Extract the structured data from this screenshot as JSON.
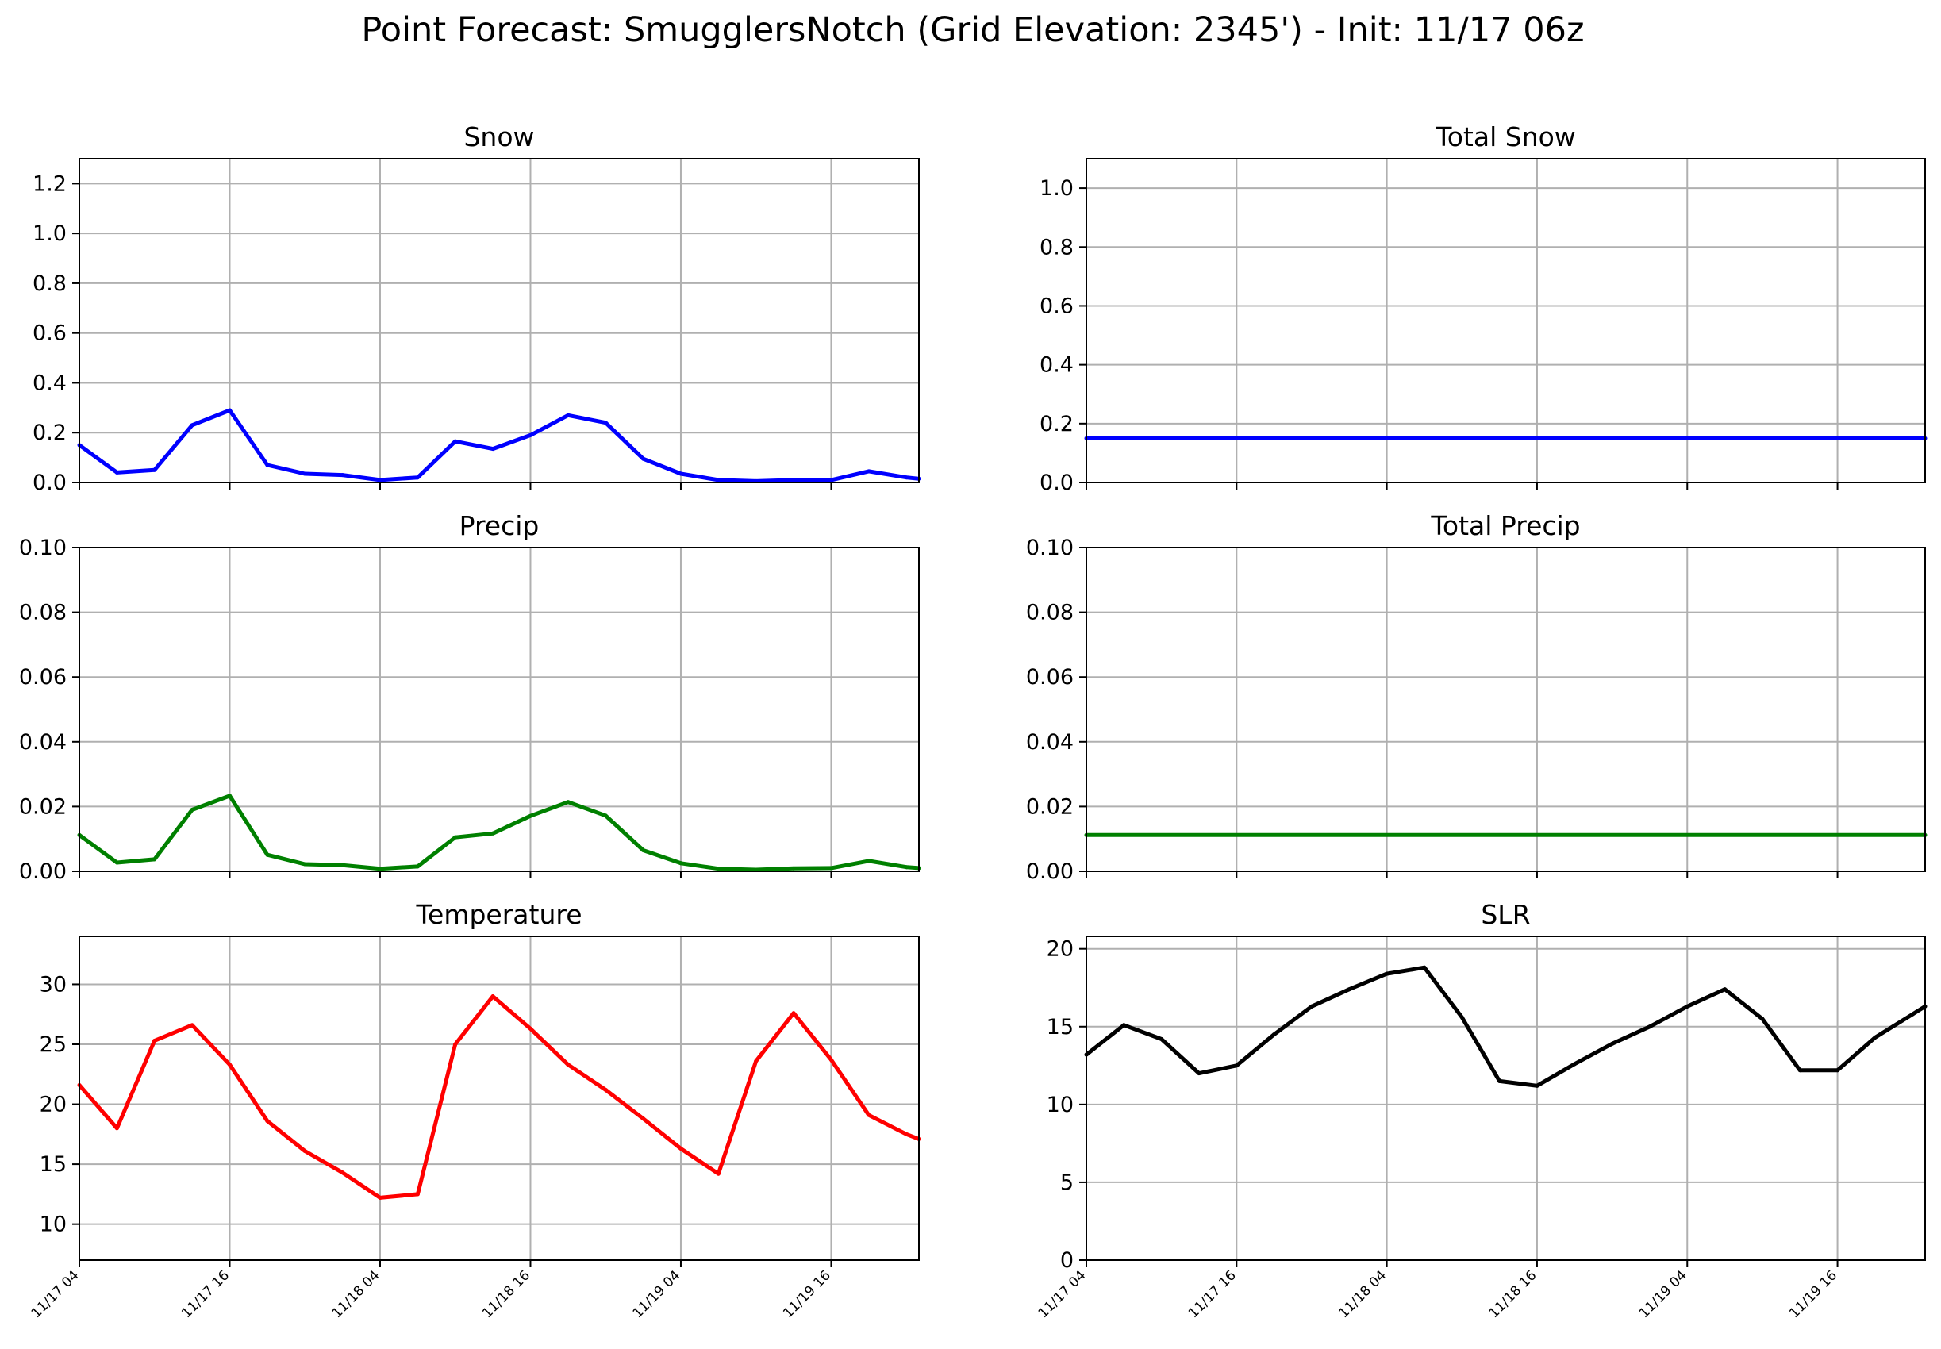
{
  "figure": {
    "title": "Point Forecast: SmugglersNotch (Grid Elevation: 2345') - Init: 11/17 06z"
  },
  "chart_data": [
    {
      "type": "line",
      "title": "Snow",
      "color": "#0000ff",
      "xlabel": "",
      "ylabel": "",
      "ylim": [
        0,
        1.3
      ],
      "yticks": [
        "0.0",
        "0.2",
        "0.4",
        "0.6",
        "0.8",
        "1.0",
        "1.2"
      ],
      "show_xticklabels": false,
      "grid": true,
      "xlim": [
        "11/17 04",
        "11/19 23"
      ],
      "xticks": [
        "11/17 04",
        "11/17 16",
        "11/18 04",
        "11/18 16",
        "11/19 04",
        "11/19 16"
      ],
      "x": [
        "11/17 04",
        "11/17 07",
        "11/17 10",
        "11/17 13",
        "11/17 16",
        "11/17 19",
        "11/17 22",
        "11/18 01",
        "11/18 04",
        "11/18 07",
        "11/18 10",
        "11/18 13",
        "11/18 16",
        "11/18 19",
        "11/18 22",
        "11/19 01",
        "11/19 04",
        "11/19 07",
        "11/19 10",
        "11/19 13",
        "11/19 16",
        "11/19 19",
        "11/19 22",
        "11/19 23"
      ],
      "values": [
        0.15,
        0.04,
        0.05,
        0.23,
        0.29,
        0.07,
        0.035,
        0.03,
        0.01,
        0.02,
        0.165,
        0.135,
        0.19,
        0.27,
        0.24,
        0.095,
        0.035,
        0.01,
        0.005,
        0.01,
        0.01,
        0.045,
        0.02,
        0.015
      ]
    },
    {
      "type": "line",
      "title": "Total Snow",
      "color": "#0000ff",
      "xlabel": "",
      "ylabel": "",
      "ylim": [
        0,
        1.1
      ],
      "yticks": [
        "0.0",
        "0.2",
        "0.4",
        "0.6",
        "0.8",
        "1.0"
      ],
      "show_xticklabels": false,
      "grid": true,
      "xlim": [
        "11/17 04",
        "11/19 23"
      ],
      "xticks": [
        "11/17 04",
        "11/17 16",
        "11/18 04",
        "11/18 16",
        "11/19 04",
        "11/19 16"
      ],
      "x": [
        "11/17 04",
        "11/19 23"
      ],
      "values": [
        0.15,
        0.15
      ]
    },
    {
      "type": "line",
      "title": "Precip",
      "color": "#008000",
      "xlabel": "",
      "ylabel": "",
      "ylim": [
        0,
        0.1
      ],
      "yticks": [
        "0.00",
        "0.02",
        "0.04",
        "0.06",
        "0.08",
        "0.10"
      ],
      "show_xticklabels": false,
      "grid": true,
      "xlim": [
        "11/17 04",
        "11/19 23"
      ],
      "xticks": [
        "11/17 04",
        "11/17 16",
        "11/18 04",
        "11/18 16",
        "11/19 04",
        "11/19 16"
      ],
      "x": [
        "11/17 04",
        "11/17 07",
        "11/17 10",
        "11/17 13",
        "11/17 16",
        "11/17 19",
        "11/17 22",
        "11/18 01",
        "11/18 04",
        "11/18 07",
        "11/18 10",
        "11/18 13",
        "11/18 16",
        "11/18 19",
        "11/18 22",
        "11/19 01",
        "11/19 04",
        "11/19 07",
        "11/19 10",
        "11/19 13",
        "11/19 16",
        "11/19 19",
        "11/19 22",
        "11/19 23"
      ],
      "values": [
        0.0112,
        0.0027,
        0.0037,
        0.019,
        0.0233,
        0.0051,
        0.0022,
        0.0019,
        0.0008,
        0.0015,
        0.0105,
        0.0117,
        0.0171,
        0.0214,
        0.0172,
        0.0065,
        0.0025,
        0.0008,
        0.0005,
        0.0009,
        0.001,
        0.0032,
        0.0013,
        0.001
      ]
    },
    {
      "type": "line",
      "title": "Total Precip",
      "color": "#008000",
      "xlabel": "",
      "ylabel": "",
      "ylim": [
        0,
        0.1
      ],
      "yticks": [
        "0.00",
        "0.02",
        "0.04",
        "0.06",
        "0.08",
        "0.10"
      ],
      "show_xticklabels": false,
      "grid": true,
      "xlim": [
        "11/17 04",
        "11/19 23"
      ],
      "xticks": [
        "11/17 04",
        "11/17 16",
        "11/18 04",
        "11/18 16",
        "11/19 04",
        "11/19 16"
      ],
      "x": [
        "11/17 04",
        "11/19 23"
      ],
      "values": [
        0.0112,
        0.0112
      ]
    },
    {
      "type": "line",
      "title": "Temperature",
      "color": "#ff0000",
      "xlabel": "",
      "ylabel": "",
      "ylim": [
        7,
        34
      ],
      "yticks": [
        "10",
        "15",
        "20",
        "25",
        "30"
      ],
      "show_xticklabels": true,
      "grid": true,
      "xlim": [
        "11/17 04",
        "11/19 23"
      ],
      "xticks": [
        "11/17 04",
        "11/17 16",
        "11/18 04",
        "11/18 16",
        "11/19 04",
        "11/19 16"
      ],
      "x": [
        "11/17 04",
        "11/17 07",
        "11/17 10",
        "11/17 13",
        "11/17 16",
        "11/17 19",
        "11/17 22",
        "11/18 01",
        "11/18 04",
        "11/18 07",
        "11/18 10",
        "11/18 13",
        "11/18 16",
        "11/18 19",
        "11/18 22",
        "11/19 01",
        "11/19 04",
        "11/19 07",
        "11/19 10",
        "11/19 13",
        "11/19 16",
        "11/19 19",
        "11/19 22",
        "11/19 23"
      ],
      "values": [
        21.6,
        18.0,
        25.3,
        26.6,
        23.3,
        18.6,
        16.1,
        14.3,
        12.2,
        12.5,
        25.0,
        29.0,
        26.3,
        23.3,
        21.2,
        18.8,
        16.3,
        14.2,
        23.6,
        27.6,
        23.7,
        19.1,
        17.5,
        17.1
      ]
    },
    {
      "type": "line",
      "title": "SLR",
      "color": "#000000",
      "xlabel": "",
      "ylabel": "",
      "ylim": [
        0,
        20.8
      ],
      "yticks": [
        "0",
        "5",
        "10",
        "15",
        "20"
      ],
      "show_xticklabels": true,
      "grid": true,
      "xlim": [
        "11/17 04",
        "11/19 23"
      ],
      "xticks": [
        "11/17 04",
        "11/17 16",
        "11/18 04",
        "11/18 16",
        "11/19 04",
        "11/19 16"
      ],
      "x": [
        "11/17 04",
        "11/17 07",
        "11/17 10",
        "11/17 13",
        "11/17 16",
        "11/17 19",
        "11/17 22",
        "11/18 01",
        "11/18 04",
        "11/18 07",
        "11/18 10",
        "11/18 13",
        "11/18 16",
        "11/18 19",
        "11/18 22",
        "11/19 01",
        "11/19 04",
        "11/19 07",
        "11/19 10",
        "11/19 13",
        "11/19 16",
        "11/19 19",
        "11/19 22",
        "11/19 23"
      ],
      "values": [
        13.2,
        15.1,
        14.2,
        12.0,
        12.5,
        14.5,
        16.3,
        17.4,
        18.4,
        18.8,
        15.6,
        11.5,
        11.2,
        12.6,
        13.9,
        15.0,
        16.3,
        17.4,
        15.5,
        12.2,
        12.2,
        14.3,
        15.8,
        16.3
      ]
    }
  ]
}
